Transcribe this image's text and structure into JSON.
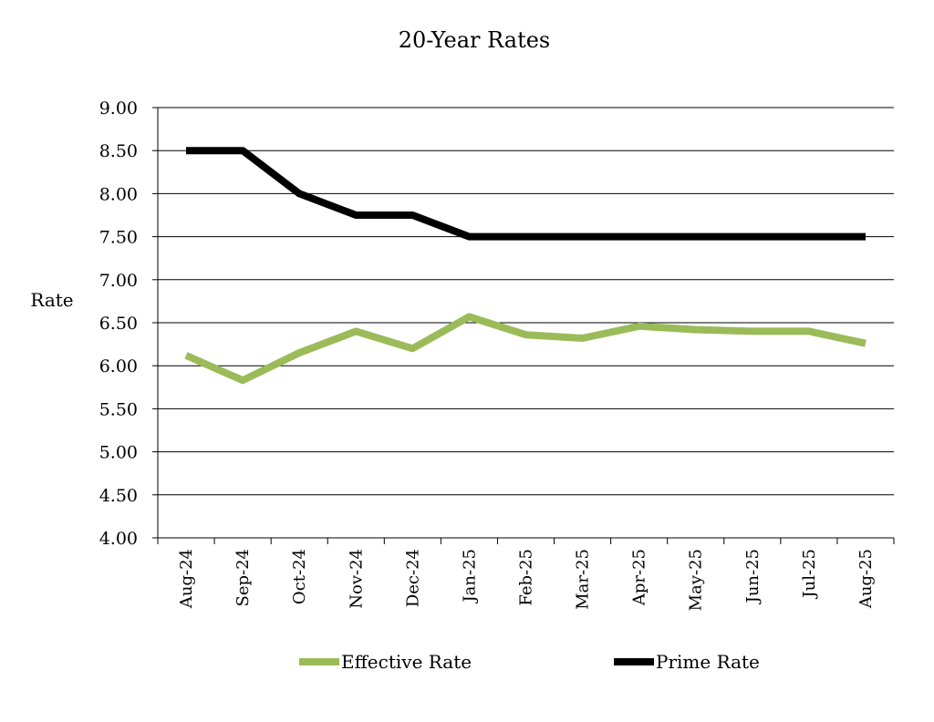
{
  "chart_data": {
    "type": "line",
    "title": "20-Year Rates",
    "xlabel": "",
    "ylabel": "Rate",
    "ylim": [
      4.0,
      9.0
    ],
    "y_ticks": [
      "4.00",
      "4.50",
      "5.00",
      "5.50",
      "6.00",
      "6.50",
      "7.00",
      "7.50",
      "8.00",
      "8.50",
      "9.00"
    ],
    "categories": [
      "Aug-24",
      "Sep-24",
      "Oct-24",
      "Nov-24",
      "Dec-24",
      "Jan-25",
      "Feb-25",
      "Mar-25",
      "Apr-25",
      "May-25",
      "Jun-25",
      "Jul-25",
      "Aug-25"
    ],
    "grid": "horizontal",
    "legend_position": "bottom",
    "series": [
      {
        "name": "Effective Rate",
        "color": "#9bbb59",
        "values": [
          6.12,
          5.83,
          6.15,
          6.4,
          6.2,
          6.57,
          6.36,
          6.32,
          6.46,
          6.42,
          6.4,
          6.4,
          6.26
        ]
      },
      {
        "name": "Prime Rate",
        "color": "#000000",
        "values": [
          8.5,
          8.5,
          8.0,
          7.75,
          7.75,
          7.5,
          7.5,
          7.5,
          7.5,
          7.5,
          7.5,
          7.5,
          7.5
        ]
      }
    ]
  }
}
